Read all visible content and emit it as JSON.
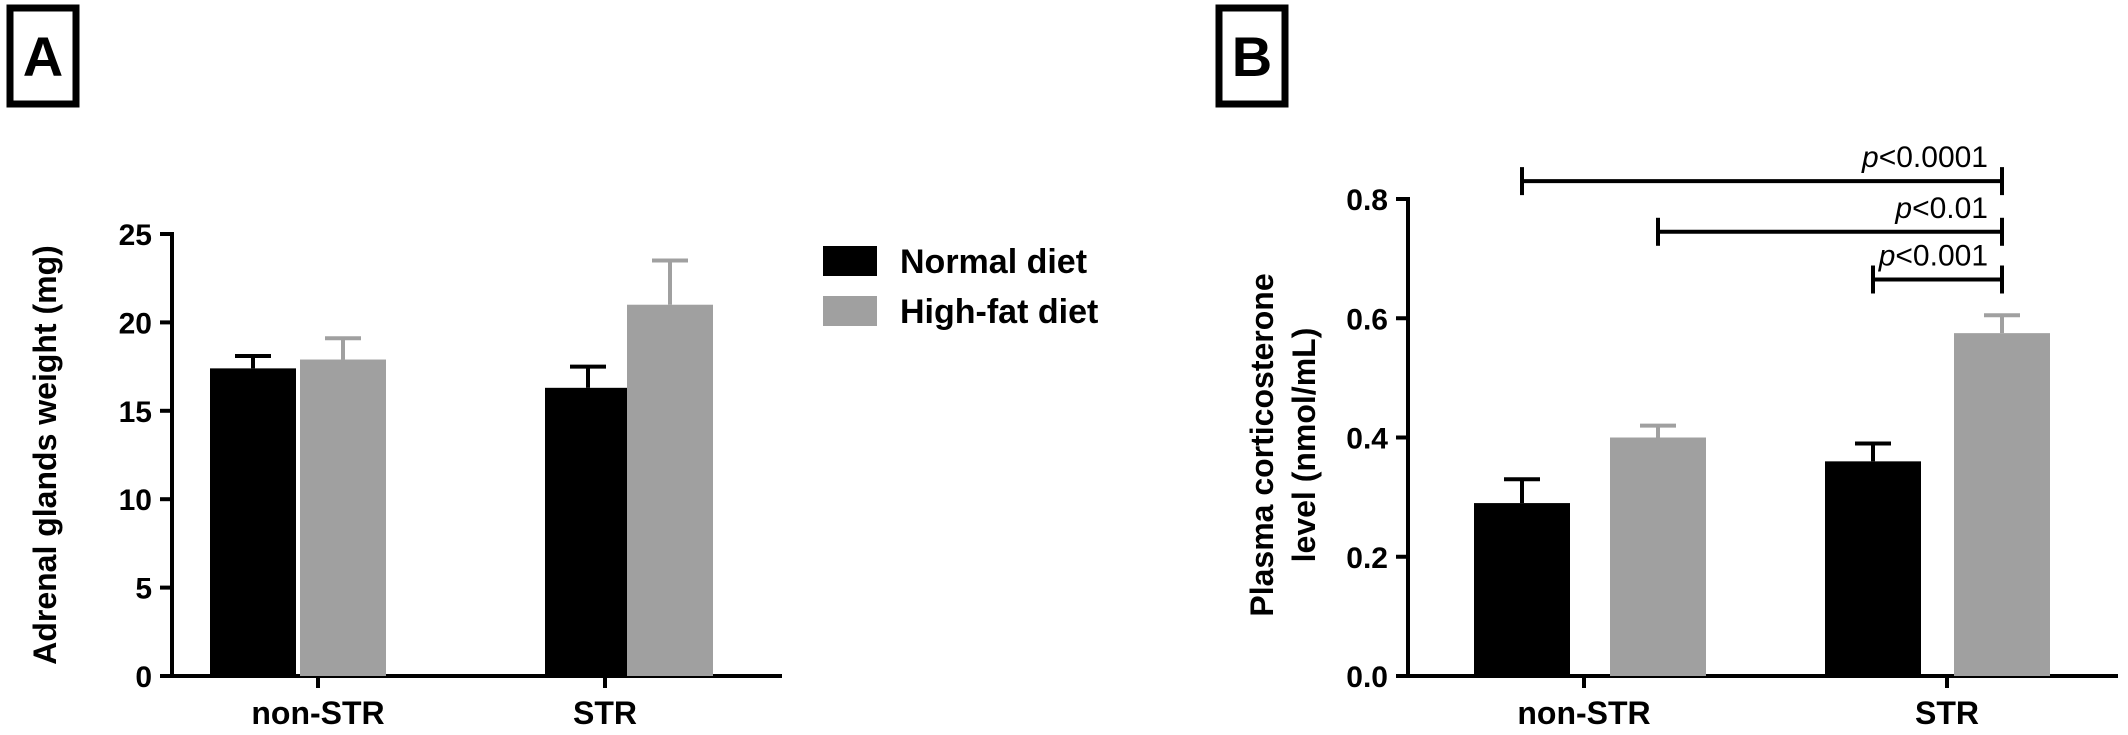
{
  "colors": {
    "normal": "#000000",
    "highfat": "#a0a0a0",
    "axis": "#000000"
  },
  "chart_data": [
    {
      "panel": "A",
      "type": "bar",
      "categories": [
        "non-STR",
        "STR"
      ],
      "ylabel": "Adrenal glands weight (mg)",
      "ylim": [
        0,
        25
      ],
      "yticks": [
        "0",
        "5",
        "10",
        "15",
        "20",
        "25"
      ],
      "legend": {
        "position": "top-right",
        "entries": [
          "Normal diet",
          "High-fat diet"
        ]
      },
      "series": [
        {
          "name": "Normal diet",
          "values": [
            17.4,
            16.3
          ],
          "errors": [
            0.7,
            1.2
          ]
        },
        {
          "name": "High-fat diet",
          "values": [
            17.9,
            21.0
          ],
          "errors": [
            1.2,
            2.5
          ]
        }
      ]
    },
    {
      "panel": "B",
      "type": "bar",
      "categories": [
        "non-STR",
        "STR"
      ],
      "ylabel_lines": [
        "Plasma corticosterone",
        "level (nmol/mL)"
      ],
      "ylim": [
        0,
        0.8
      ],
      "yticks": [
        "0.0",
        "0.2",
        "0.4",
        "0.6",
        "0.8"
      ],
      "series": [
        {
          "name": "Normal diet",
          "values": [
            0.29,
            0.36
          ],
          "errors": [
            0.04,
            0.03
          ]
        },
        {
          "name": "High-fat diet",
          "values": [
            0.4,
            0.575
          ],
          "errors": [
            0.02,
            0.03
          ]
        }
      ],
      "significance": [
        {
          "label_italic": "p",
          "label_rest": "<0.0001",
          "from": "non-STR Normal diet",
          "to": "STR High-fat diet",
          "y": 0.83
        },
        {
          "label_italic": "p",
          "label_rest": "<0.01",
          "from": "non-STR High-fat diet",
          "to": "STR High-fat diet",
          "y": 0.745
        },
        {
          "label_italic": "p",
          "label_rest": "<0.001",
          "from": "STR Normal diet",
          "to": "STR High-fat diet",
          "y": 0.665
        }
      ]
    }
  ]
}
